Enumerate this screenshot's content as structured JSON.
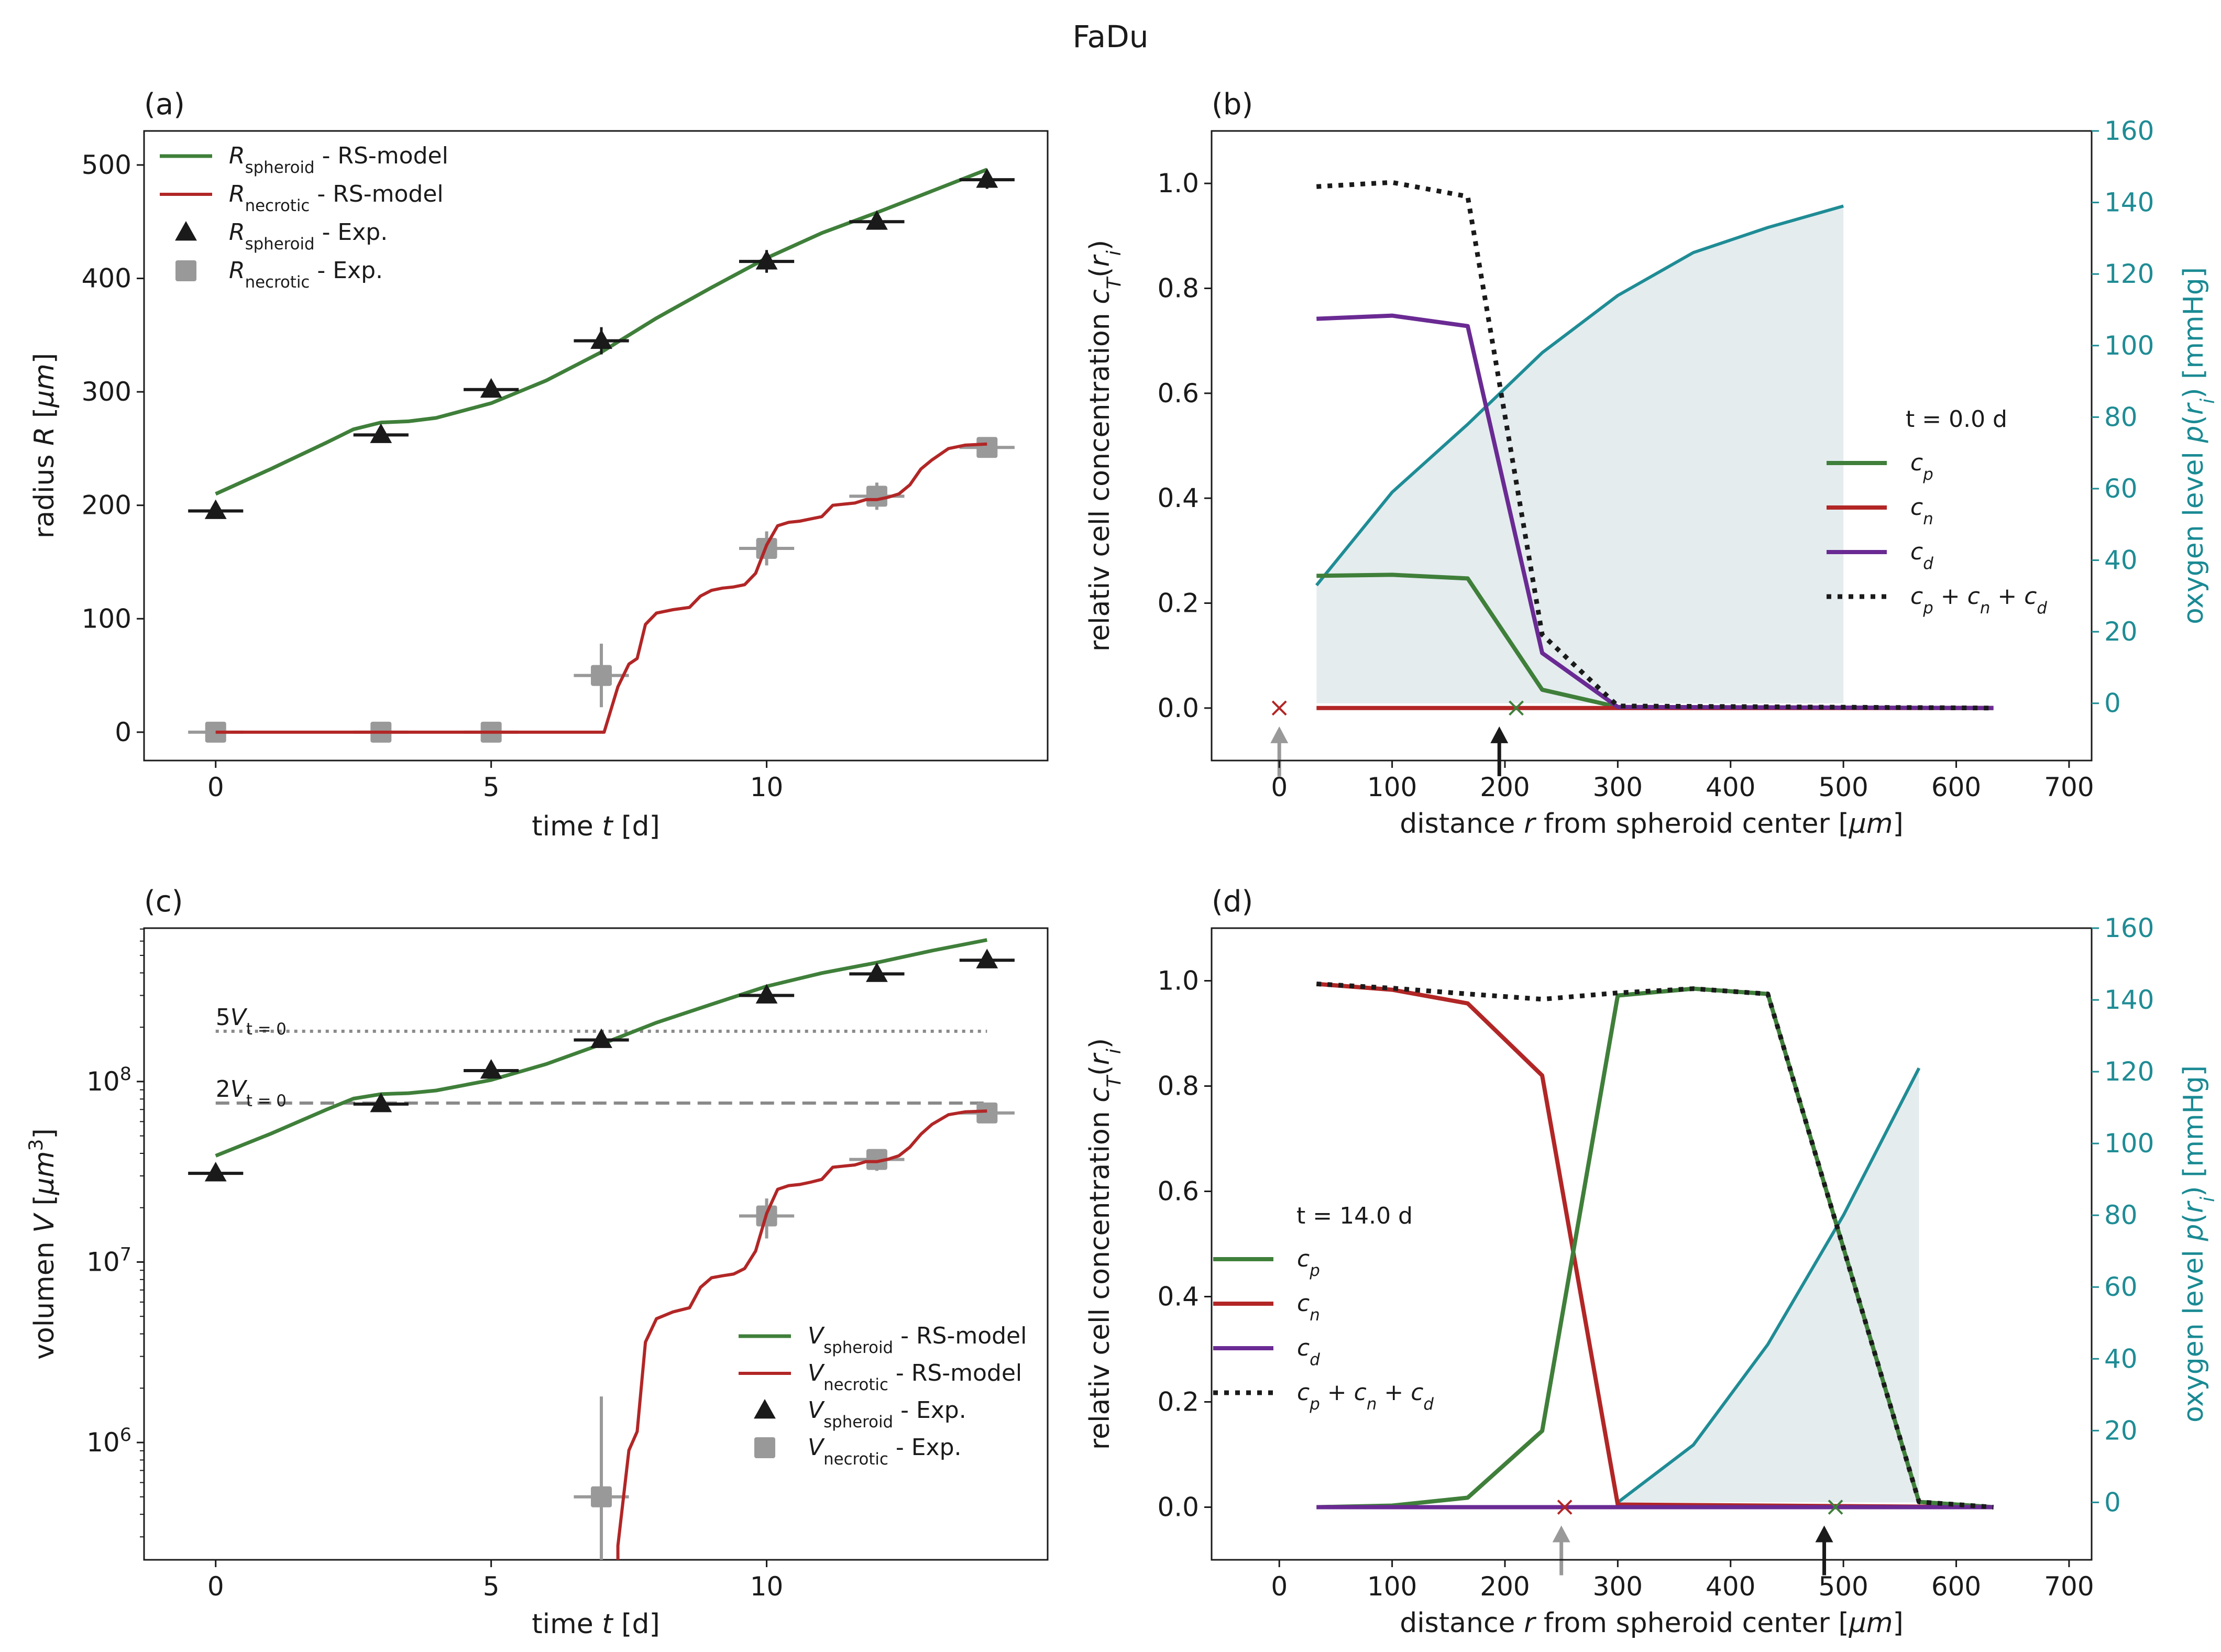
{
  "suptitle": "FaDu",
  "panels": {
    "a": {
      "label": "(a)",
      "xlabel": "time t [d]",
      "ylabel": "radius R [μm]"
    },
    "b": {
      "label": "(b)",
      "xlabel": "distance r from spheroid center [μm]",
      "ylabel": "relativ cell concentration c_T(r_i)",
      "ylabel2": "oxygen level p(r_i) [mmHg]",
      "time_text": "t = 0.0 d"
    },
    "c": {
      "label": "(c)",
      "xlabel": "time t [d]",
      "ylabel": "volumen V [μm³]",
      "ref5": "5V",
      "ref2": "2V",
      "ref_sub": "t = 0"
    },
    "d": {
      "label": "(d)",
      "xlabel": "distance r from spheroid center [μm]",
      "ylabel": "relativ cell concentration c_T(r_i)",
      "ylabel2": "oxygen level p(r_i) [mmHg]",
      "time_text": "t = 14.0 d"
    }
  },
  "colors": {
    "green": "#3f7f3a",
    "red": "#b22626",
    "purple": "#6a2a93",
    "teal": "#1f8c95",
    "fill": "#e4ecee",
    "gray": "#999999",
    "black": "#1a1a1a"
  },
  "chart_data": [
    {
      "id": "a",
      "type": "line",
      "title": "(a)",
      "xlabel": "time t [d]",
      "ylabel": "radius R [μm]",
      "xlim": [
        -1.3,
        15.1
      ],
      "ylim": [
        -25,
        530
      ],
      "xticks": [
        0,
        5,
        10
      ],
      "yticks": [
        0,
        100,
        200,
        300,
        400,
        500
      ],
      "legend": [
        "R_spheroid - RS-model",
        "R_necrotic - RS-model",
        "R_spheroid - Exp.",
        "R_necrotic - Exp."
      ],
      "series": [
        {
          "name": "R_spheroid - RS-model",
          "color": "green",
          "x": [
            0,
            1,
            2,
            2.5,
            3,
            3.5,
            4,
            5,
            6,
            7,
            8,
            9,
            10,
            11,
            12,
            13,
            14
          ],
          "y": [
            210,
            232,
            255,
            267,
            273,
            274,
            277,
            290,
            310,
            335,
            365,
            392,
            418,
            440,
            458,
            477,
            496
          ]
        },
        {
          "name": "R_necrotic - RS-model",
          "color": "red",
          "x": [
            0,
            7.05,
            7.3,
            7.5,
            7.65,
            7.8,
            8.0,
            8.3,
            8.6,
            8.8,
            9.0,
            9.2,
            9.4,
            9.6,
            9.8,
            10.0,
            10.2,
            10.4,
            10.6,
            10.8,
            11.0,
            11.2,
            11.4,
            11.6,
            11.8,
            12.0,
            12.2,
            12.4,
            12.6,
            12.8,
            13.0,
            13.3,
            13.6,
            14.0
          ],
          "y": [
            0,
            0,
            40,
            60,
            65,
            95,
            105,
            108,
            110,
            120,
            125,
            127,
            128,
            130,
            140,
            165,
            182,
            185,
            186,
            188,
            190,
            200,
            201,
            202,
            205,
            205,
            207,
            210,
            218,
            232,
            240,
            250,
            253,
            254
          ]
        },
        {
          "name": "R_spheroid - Exp.",
          "marker": "triangle",
          "color": "black",
          "x": [
            0,
            3,
            5,
            7,
            10,
            12,
            14
          ],
          "y": [
            195,
            262,
            302,
            345,
            415,
            450,
            487
          ],
          "xerr": 0.5,
          "yerr": [
            4,
            5,
            5,
            12,
            10,
            7,
            8
          ]
        },
        {
          "name": "R_necrotic - Exp.",
          "marker": "square",
          "color": "gray",
          "x": [
            0,
            3,
            5,
            7,
            10,
            12,
            14
          ],
          "y": [
            0,
            0,
            0,
            50,
            162,
            208,
            251
          ],
          "xerr": 0.5,
          "yerr": [
            0,
            0,
            0,
            28,
            15,
            12,
            5
          ]
        }
      ]
    },
    {
      "id": "b",
      "type": "line",
      "title": "(b)",
      "xlabel": "distance r from spheroid center [μm]",
      "ylabel": "relativ cell concentration c_T(r_i)",
      "ylabel2": "oxygen level p(r_i) [mmHg]",
      "xlim": [
        -60,
        720
      ],
      "ylim": [
        -0.1,
        1.1
      ],
      "ylim2": [
        -16,
        160
      ],
      "xticks": [
        0,
        100,
        200,
        300,
        400,
        500,
        600,
        700
      ],
      "yticks": [
        0.0,
        0.2,
        0.4,
        0.6,
        0.8,
        1.0
      ],
      "yticks2": [
        0,
        20,
        40,
        60,
        80,
        100,
        120,
        140,
        160
      ],
      "legend": [
        "c_p",
        "c_n",
        "c_d",
        "c_p + c_n + c_d"
      ],
      "series": [
        {
          "name": "oxygen",
          "color": "teal",
          "axis": "right",
          "x": [
            33,
            100,
            167,
            233,
            300,
            367,
            433,
            500
          ],
          "y": [
            33,
            59,
            78,
            98,
            114,
            126,
            133,
            139
          ]
        },
        {
          "name": "c_p",
          "color": "green",
          "x": [
            33,
            100,
            167,
            233,
            300,
            633
          ],
          "y": [
            0.252,
            0.254,
            0.247,
            0.035,
            0.002,
            0
          ]
        },
        {
          "name": "c_n",
          "color": "red",
          "x": [
            33,
            633
          ],
          "y": [
            0,
            0
          ]
        },
        {
          "name": "c_d",
          "color": "purple",
          "x": [
            33,
            100,
            167,
            233,
            300,
            633
          ],
          "y": [
            0.742,
            0.748,
            0.728,
            0.105,
            0.002,
            0
          ]
        },
        {
          "name": "c_p + c_n + c_d",
          "color": "black",
          "dotted": true,
          "x": [
            33,
            100,
            167,
            233,
            300,
            633
          ],
          "y": [
            0.994,
            1.002,
            0.975,
            0.14,
            0.004,
            0
          ]
        }
      ],
      "markers_x": [
        {
          "x": 0,
          "color": "red"
        },
        {
          "x": 210,
          "color": "green"
        }
      ],
      "arrows": [
        {
          "x": 0,
          "color": "gray"
        },
        {
          "x": 195,
          "color": "black"
        }
      ]
    },
    {
      "id": "c",
      "type": "line",
      "yscale": "log",
      "title": "(c)",
      "xlabel": "time t [d]",
      "ylabel": "volumen V [μm³]",
      "xlim": [
        -1.3,
        15.1
      ],
      "ylim_log10": [
        5.35,
        8.85
      ],
      "xticks": [
        0,
        5,
        10
      ],
      "yticks": [
        "10^6",
        "10^7",
        "10^8"
      ],
      "legend": [
        "V_spheroid - RS-model",
        "V_necrotic - RS-model",
        "V_spheroid - Exp.",
        "V_necrotic - Exp."
      ],
      "reference_lines": [
        {
          "label": "5V_t=0",
          "value": 190000000,
          "style": "dotted"
        },
        {
          "label": "2V_t=0",
          "value": 76000000,
          "style": "dashed"
        }
      ],
      "series": [
        {
          "name": "V_spheroid - RS-model",
          "color": "green",
          "x": [
            0,
            1,
            2,
            2.5,
            3,
            3.5,
            4,
            5,
            6,
            7,
            8,
            9,
            10,
            11,
            12,
            13,
            14
          ],
          "y": [
            38800000,
            51400000,
            69700000,
            80400000,
            85200000,
            86200000,
            89200000,
            102000000,
            125000000,
            161000000,
            212000000,
            268000000,
            337000000,
            399000000,
            456000000,
            531000000,
            609000000
          ]
        },
        {
          "name": "V_necrotic - RS-model",
          "color": "red",
          "x": [
            7.3,
            7.5,
            7.65,
            7.8,
            8.0,
            8.3,
            8.6,
            8.8,
            9.0,
            9.2,
            9.4,
            9.6,
            9.8,
            10.0,
            10.2,
            10.4,
            10.6,
            10.8,
            11.0,
            11.2,
            11.4,
            11.6,
            11.8,
            12.0,
            12.2,
            12.4,
            12.6,
            12.8,
            13.0,
            13.3,
            13.6,
            14.0
          ],
          "y": [
            268000,
            905000,
            1150000,
            3600000,
            4850000,
            5290000,
            5580000,
            7240000,
            8180000,
            8390000,
            8580000,
            9200000,
            11500000,
            18600000,
            25300000,
            26500000,
            26900000,
            27700000,
            28700000,
            33500000,
            34000000,
            34500000,
            36000000,
            36000000,
            37100000,
            38800000,
            43300000,
            51100000,
            57900000,
            65500000,
            67900000,
            68700000
          ]
        },
        {
          "name": "V_spheroid - Exp.",
          "marker": "triangle",
          "color": "black",
          "x": [
            0,
            3,
            5,
            7,
            10,
            12,
            14
          ],
          "y": [
            31000000,
            75000000,
            115000000,
            170000000,
            300000000,
            395000000,
            470000000
          ]
        },
        {
          "name": "V_necrotic - Exp.",
          "marker": "square",
          "color": "gray",
          "x": [
            7,
            10,
            12,
            14
          ],
          "y": [
            500000,
            18000000,
            37000000,
            67000000
          ]
        }
      ]
    },
    {
      "id": "d",
      "type": "line",
      "title": "(d)",
      "xlabel": "distance r from spheroid center [μm]",
      "ylabel": "relativ cell concentration c_T(r_i)",
      "ylabel2": "oxygen level p(r_i) [mmHg]",
      "xlim": [
        -60,
        720
      ],
      "ylim": [
        -0.1,
        1.1
      ],
      "ylim2": [
        -16,
        160
      ],
      "xticks": [
        0,
        100,
        200,
        300,
        400,
        500,
        600,
        700
      ],
      "yticks": [
        0.0,
        0.2,
        0.4,
        0.6,
        0.8,
        1.0
      ],
      "yticks2": [
        0,
        20,
        40,
        60,
        80,
        100,
        120,
        140,
        160
      ],
      "legend": [
        "c_p",
        "c_n",
        "c_d",
        "c_p + c_n + c_d"
      ],
      "series": [
        {
          "name": "oxygen",
          "color": "teal",
          "axis": "right",
          "x": [
            300,
            367,
            433,
            500,
            567
          ],
          "y": [
            0,
            16,
            44,
            80,
            121
          ]
        },
        {
          "name": "c_n",
          "color": "red",
          "x": [
            33,
            100,
            167,
            233,
            300,
            633
          ],
          "y": [
            0.994,
            0.983,
            0.957,
            0.82,
            0.005,
            0
          ]
        },
        {
          "name": "c_p",
          "color": "green",
          "x": [
            33,
            100,
            167,
            233,
            300,
            367,
            433,
            567,
            633
          ],
          "y": [
            0,
            0.003,
            0.018,
            0.145,
            0.972,
            0.985,
            0.975,
            0.01,
            0
          ]
        },
        {
          "name": "c_d",
          "color": "purple",
          "x": [
            33,
            633
          ],
          "y": [
            0,
            0
          ]
        },
        {
          "name": "c_p + c_n + c_d",
          "color": "black",
          "dotted": true,
          "x": [
            33,
            100,
            167,
            233,
            300,
            367,
            433,
            567,
            633
          ],
          "y": [
            0.994,
            0.986,
            0.975,
            0.965,
            0.977,
            0.985,
            0.975,
            0.01,
            0
          ]
        }
      ],
      "markers_x": [
        {
          "x": 253,
          "color": "red"
        },
        {
          "x": 493,
          "color": "green"
        }
      ],
      "arrows": [
        {
          "x": 250,
          "color": "gray"
        },
        {
          "x": 483,
          "color": "black"
        }
      ]
    }
  ]
}
